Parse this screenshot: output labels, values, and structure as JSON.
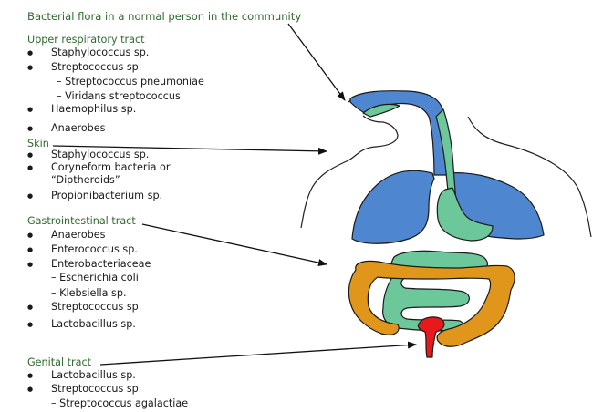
{
  "title": "Bacterial flora in a normal person in the community",
  "sections": {
    "upper": {
      "header": "Upper respiratory tract",
      "items": [
        "Staphylococcus sp.",
        "Streptococcus sp.",
        "–  Streptococcus pneumoniae",
        "–  Viridans streptococcus",
        "Haemophilus sp.",
        "Anaerobes"
      ]
    },
    "skin": {
      "header": "Skin",
      "items": [
        "Staphylococcus sp.",
        "Coryneform bacteria or",
        "“Diptheroids”",
        "Propionibacterium sp."
      ]
    },
    "gi": {
      "header": "Gastrointestinal tract",
      "items": [
        "Anaerobes",
        "Enterococcus sp.",
        "Enterobacteriaceae",
        "– Escherichia coli",
        "– Klebsiella sp.",
        "Streptococcus sp.",
        "Lactobacillus sp."
      ]
    },
    "genital": {
      "header": "Genital tract",
      "items": [
        "Lactobacillus sp.",
        "Streptococcus sp.",
        "– Streptococcus agalactiae"
      ]
    }
  },
  "colors": {
    "header_green": "#2e6b2e",
    "respiratory_blue": "#4f86d0",
    "gi_green": "#6cc79a",
    "colon_orange": "#e0961a",
    "genital_red": "#e8191b"
  }
}
